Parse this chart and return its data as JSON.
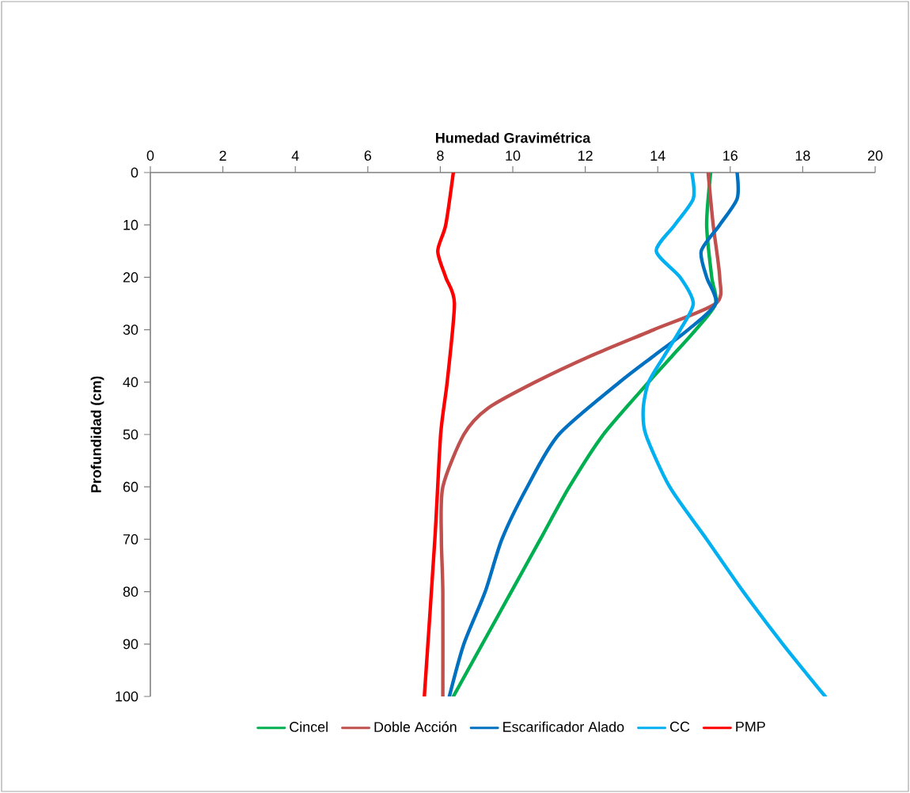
{
  "chart_data": {
    "type": "line",
    "xlabel": "Humedad Gravimétrica",
    "ylabel": "Profundidad (cm)",
    "xlim": [
      0,
      20
    ],
    "xticks": [
      0,
      2,
      4,
      6,
      8,
      10,
      12,
      14,
      16,
      18,
      20
    ],
    "ylim": [
      100,
      0
    ],
    "yticks": [
      0,
      10,
      20,
      30,
      40,
      50,
      60,
      70,
      80,
      90,
      100
    ],
    "legend": "bottom",
    "series": [
      {
        "name": "Cincel",
        "color": "#00b050",
        "x": [
          15.46,
          15.35,
          15.49,
          15.6,
          15.05,
          14.4,
          13.75,
          12.5,
          11.56,
          10.76,
          9.96,
          9.16,
          8.36
        ],
        "values": [
          0,
          10,
          20,
          25,
          30,
          35,
          40,
          50,
          60,
          70,
          80,
          90,
          100
        ]
      },
      {
        "name": "Doble Acción",
        "color": "#c0504d",
        "x": [
          15.39,
          15.53,
          15.71,
          15.6,
          13.89,
          12.15,
          10.62,
          9.31,
          8.65,
          8.07,
          8.03,
          8.07,
          8.07
        ],
        "values": [
          0,
          10,
          20,
          25,
          30,
          35,
          40,
          45,
          50,
          60,
          70,
          80,
          100
        ]
      },
      {
        "name": "Escarificador Alado",
        "color": "#0070c0",
        "x": [
          16.19,
          16.19,
          15.71,
          15.2,
          15.35,
          15.6,
          14.84,
          13.89,
          12.95,
          11.27,
          10.4,
          9.7,
          9.24,
          8.65,
          8.25
        ],
        "values": [
          0,
          5,
          10,
          15,
          20,
          25,
          30,
          35,
          40,
          50,
          60,
          70,
          80,
          90,
          100
        ]
      },
      {
        "name": "CC",
        "color": "#00b0f0",
        "x": [
          14.94,
          14.98,
          14.47,
          13.96,
          14.62,
          14.98,
          14.62,
          14.18,
          13.75,
          13.6,
          13.67,
          14.33,
          15.35,
          16.36,
          17.45,
          18.62
        ],
        "values": [
          0,
          5,
          10,
          15,
          20,
          25,
          30,
          35,
          40,
          45,
          50,
          60,
          70,
          80,
          90,
          100
        ]
      },
      {
        "name": "PMP",
        "color": "#ff0000",
        "x": [
          8.36,
          8.15,
          7.93,
          8.15,
          8.39,
          8.19,
          8.01,
          7.85,
          7.56
        ],
        "values": [
          0,
          10,
          15,
          20,
          25,
          40,
          50,
          70,
          100
        ]
      }
    ]
  }
}
